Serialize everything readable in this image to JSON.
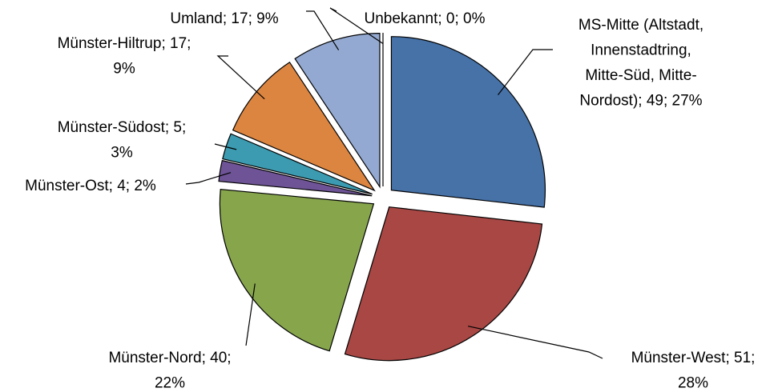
{
  "chart_data": {
    "type": "pie",
    "labels": [
      [
        "MS-Mitte (Altstadt,",
        "Innenstadtring,",
        "Mitte-Süd, Mitte-",
        "Nordost); 49; 27%"
      ],
      [
        "Münster-West; 51;",
        "28%"
      ],
      [
        "Münster-Nord; 40;",
        "22%"
      ],
      [
        "Münster-Ost; 4; 2%"
      ],
      [
        "Münster-Südost; 5;",
        "3%"
      ],
      [
        "Münster-Hiltrup; 17;",
        "9%"
      ],
      [
        "Umland; 17; 9%"
      ],
      [
        "Unbekannt; 0; 0%"
      ]
    ],
    "values": [
      49,
      51,
      40,
      4,
      5,
      17,
      17,
      0
    ],
    "colors": [
      "#4672a8",
      "#a84744",
      "#87a64c",
      "#6e5496",
      "#3c9bb0",
      "#dc8540",
      "#93a9d1",
      "#c0504d"
    ]
  }
}
